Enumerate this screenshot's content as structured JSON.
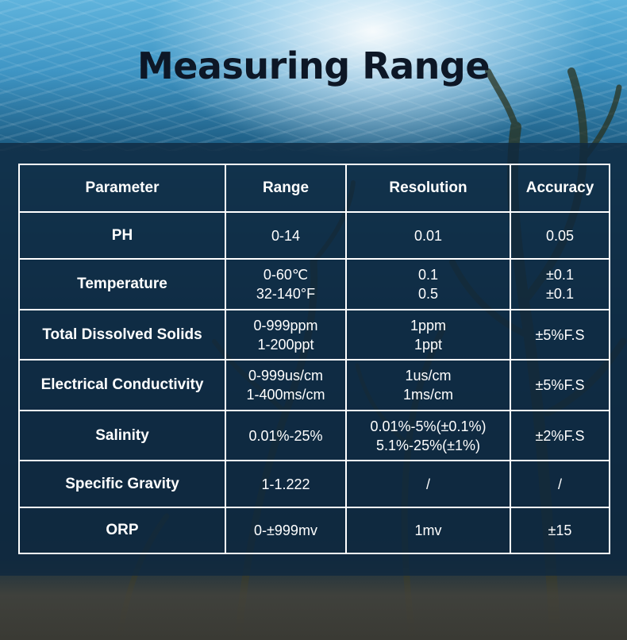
{
  "header": {
    "title": "Measuring Range"
  },
  "table": {
    "columns": [
      "Parameter",
      "Range",
      "Resolution",
      "Accuracy"
    ],
    "rows": [
      {
        "parameter": "PH",
        "range": [
          "0-14"
        ],
        "resolution": [
          "0.01"
        ],
        "accuracy": [
          "0.05"
        ]
      },
      {
        "parameter": "Temperature",
        "range": [
          "0-60℃",
          "32-140°F"
        ],
        "resolution": [
          "0.1",
          "0.5"
        ],
        "accuracy": [
          "±0.1",
          "±0.1"
        ]
      },
      {
        "parameter": "Total Dissolved Solids",
        "range": [
          "0-999ppm",
          "1-200ppt"
        ],
        "resolution": [
          "1ppm",
          "1ppt"
        ],
        "accuracy": [
          "±5%F.S"
        ]
      },
      {
        "parameter": "Electrical Conductivity",
        "range": [
          "0-999us/cm",
          "1-400ms/cm"
        ],
        "resolution": [
          "1us/cm",
          "1ms/cm"
        ],
        "accuracy": [
          "±5%F.S"
        ]
      },
      {
        "parameter": "Salinity",
        "range": [
          "0.01%-25%"
        ],
        "resolution": [
          "0.01%-5%(±0.1%)",
          "5.1%-25%(±1%)"
        ],
        "accuracy": [
          "±2%F.S"
        ]
      },
      {
        "parameter": "Specific Gravity",
        "range": [
          "1-1.222"
        ],
        "resolution": [
          "/"
        ],
        "accuracy": [
          "/"
        ]
      },
      {
        "parameter": "ORP",
        "range": [
          "0-±999mv"
        ],
        "resolution": [
          "1mv"
        ],
        "accuracy": [
          "±15"
        ]
      }
    ]
  },
  "colors": {
    "title": "#0d1726",
    "table_text": "#ffffff",
    "table_border": "#ffffff",
    "overlay": "#0f283e"
  }
}
